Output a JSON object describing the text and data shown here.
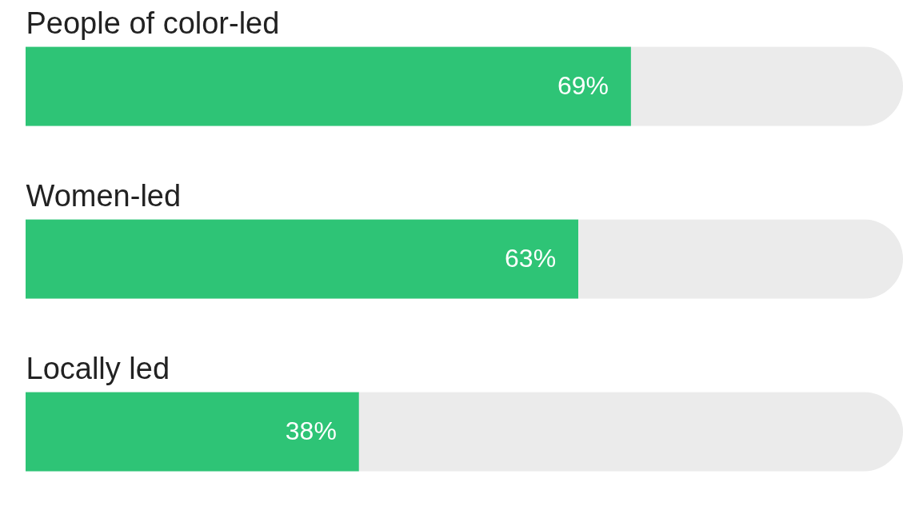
{
  "chart_data": {
    "type": "bar",
    "orientation": "horizontal",
    "stacked": true,
    "categories": [
      "People of color-led",
      "Women-led",
      "Locally led"
    ],
    "series": [
      {
        "color": "#2ec476",
        "values": [
          69,
          63,
          38
        ],
        "value_labels": [
          "69%",
          "63%",
          "38%"
        ]
      },
      {
        "color": "#ebebeb",
        "values": [
          31,
          37,
          62
        ]
      }
    ],
    "xlim": [
      0,
      100
    ],
    "tick_labels": "y",
    "legend": false
  }
}
